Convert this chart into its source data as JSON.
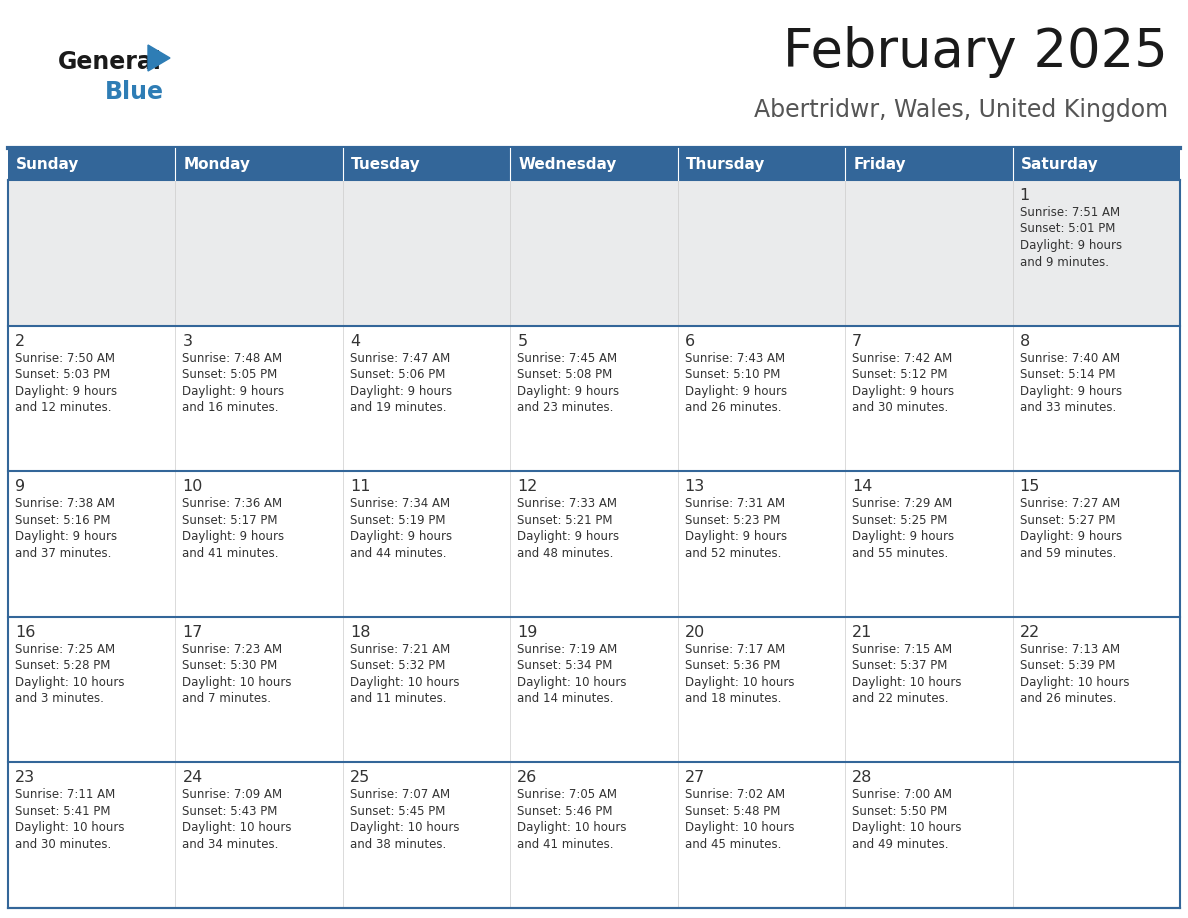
{
  "title": "February 2025",
  "subtitle": "Abertridwr, Wales, United Kingdom",
  "header_color": "#336699",
  "header_text_color": "#FFFFFF",
  "day_names": [
    "Sunday",
    "Monday",
    "Tuesday",
    "Wednesday",
    "Thursday",
    "Friday",
    "Saturday"
  ],
  "background_color": "#FFFFFF",
  "cell_bg_even": "#EAEBEC",
  "cell_bg_odd": "#FFFFFF",
  "line_color": "#336699",
  "text_color": "#333333",
  "day_number_color": "#333333",
  "logo_general_color": "#1A1A1A",
  "logo_blue_color": "#2E7DB5",
  "days": [
    {
      "day": 1,
      "col": 6,
      "row": 0,
      "sunrise": "7:51 AM",
      "sunset": "5:01 PM",
      "daylight_hours": 9,
      "daylight_minutes": 9
    },
    {
      "day": 2,
      "col": 0,
      "row": 1,
      "sunrise": "7:50 AM",
      "sunset": "5:03 PM",
      "daylight_hours": 9,
      "daylight_minutes": 12
    },
    {
      "day": 3,
      "col": 1,
      "row": 1,
      "sunrise": "7:48 AM",
      "sunset": "5:05 PM",
      "daylight_hours": 9,
      "daylight_minutes": 16
    },
    {
      "day": 4,
      "col": 2,
      "row": 1,
      "sunrise": "7:47 AM",
      "sunset": "5:06 PM",
      "daylight_hours": 9,
      "daylight_minutes": 19
    },
    {
      "day": 5,
      "col": 3,
      "row": 1,
      "sunrise": "7:45 AM",
      "sunset": "5:08 PM",
      "daylight_hours": 9,
      "daylight_minutes": 23
    },
    {
      "day": 6,
      "col": 4,
      "row": 1,
      "sunrise": "7:43 AM",
      "sunset": "5:10 PM",
      "daylight_hours": 9,
      "daylight_minutes": 26
    },
    {
      "day": 7,
      "col": 5,
      "row": 1,
      "sunrise": "7:42 AM",
      "sunset": "5:12 PM",
      "daylight_hours": 9,
      "daylight_minutes": 30
    },
    {
      "day": 8,
      "col": 6,
      "row": 1,
      "sunrise": "7:40 AM",
      "sunset": "5:14 PM",
      "daylight_hours": 9,
      "daylight_minutes": 33
    },
    {
      "day": 9,
      "col": 0,
      "row": 2,
      "sunrise": "7:38 AM",
      "sunset": "5:16 PM",
      "daylight_hours": 9,
      "daylight_minutes": 37
    },
    {
      "day": 10,
      "col": 1,
      "row": 2,
      "sunrise": "7:36 AM",
      "sunset": "5:17 PM",
      "daylight_hours": 9,
      "daylight_minutes": 41
    },
    {
      "day": 11,
      "col": 2,
      "row": 2,
      "sunrise": "7:34 AM",
      "sunset": "5:19 PM",
      "daylight_hours": 9,
      "daylight_minutes": 44
    },
    {
      "day": 12,
      "col": 3,
      "row": 2,
      "sunrise": "7:33 AM",
      "sunset": "5:21 PM",
      "daylight_hours": 9,
      "daylight_minutes": 48
    },
    {
      "day": 13,
      "col": 4,
      "row": 2,
      "sunrise": "7:31 AM",
      "sunset": "5:23 PM",
      "daylight_hours": 9,
      "daylight_minutes": 52
    },
    {
      "day": 14,
      "col": 5,
      "row": 2,
      "sunrise": "7:29 AM",
      "sunset": "5:25 PM",
      "daylight_hours": 9,
      "daylight_minutes": 55
    },
    {
      "day": 15,
      "col": 6,
      "row": 2,
      "sunrise": "7:27 AM",
      "sunset": "5:27 PM",
      "daylight_hours": 9,
      "daylight_minutes": 59
    },
    {
      "day": 16,
      "col": 0,
      "row": 3,
      "sunrise": "7:25 AM",
      "sunset": "5:28 PM",
      "daylight_hours": 10,
      "daylight_minutes": 3
    },
    {
      "day": 17,
      "col": 1,
      "row": 3,
      "sunrise": "7:23 AM",
      "sunset": "5:30 PM",
      "daylight_hours": 10,
      "daylight_minutes": 7
    },
    {
      "day": 18,
      "col": 2,
      "row": 3,
      "sunrise": "7:21 AM",
      "sunset": "5:32 PM",
      "daylight_hours": 10,
      "daylight_minutes": 11
    },
    {
      "day": 19,
      "col": 3,
      "row": 3,
      "sunrise": "7:19 AM",
      "sunset": "5:34 PM",
      "daylight_hours": 10,
      "daylight_minutes": 14
    },
    {
      "day": 20,
      "col": 4,
      "row": 3,
      "sunrise": "7:17 AM",
      "sunset": "5:36 PM",
      "daylight_hours": 10,
      "daylight_minutes": 18
    },
    {
      "day": 21,
      "col": 5,
      "row": 3,
      "sunrise": "7:15 AM",
      "sunset": "5:37 PM",
      "daylight_hours": 10,
      "daylight_minutes": 22
    },
    {
      "day": 22,
      "col": 6,
      "row": 3,
      "sunrise": "7:13 AM",
      "sunset": "5:39 PM",
      "daylight_hours": 10,
      "daylight_minutes": 26
    },
    {
      "day": 23,
      "col": 0,
      "row": 4,
      "sunrise": "7:11 AM",
      "sunset": "5:41 PM",
      "daylight_hours": 10,
      "daylight_minutes": 30
    },
    {
      "day": 24,
      "col": 1,
      "row": 4,
      "sunrise": "7:09 AM",
      "sunset": "5:43 PM",
      "daylight_hours": 10,
      "daylight_minutes": 34
    },
    {
      "day": 25,
      "col": 2,
      "row": 4,
      "sunrise": "7:07 AM",
      "sunset": "5:45 PM",
      "daylight_hours": 10,
      "daylight_minutes": 38
    },
    {
      "day": 26,
      "col": 3,
      "row": 4,
      "sunrise": "7:05 AM",
      "sunset": "5:46 PM",
      "daylight_hours": 10,
      "daylight_minutes": 41
    },
    {
      "day": 27,
      "col": 4,
      "row": 4,
      "sunrise": "7:02 AM",
      "sunset": "5:48 PM",
      "daylight_hours": 10,
      "daylight_minutes": 45
    },
    {
      "day": 28,
      "col": 5,
      "row": 4,
      "sunrise": "7:00 AM",
      "sunset": "5:50 PM",
      "daylight_hours": 10,
      "daylight_minutes": 49
    }
  ]
}
